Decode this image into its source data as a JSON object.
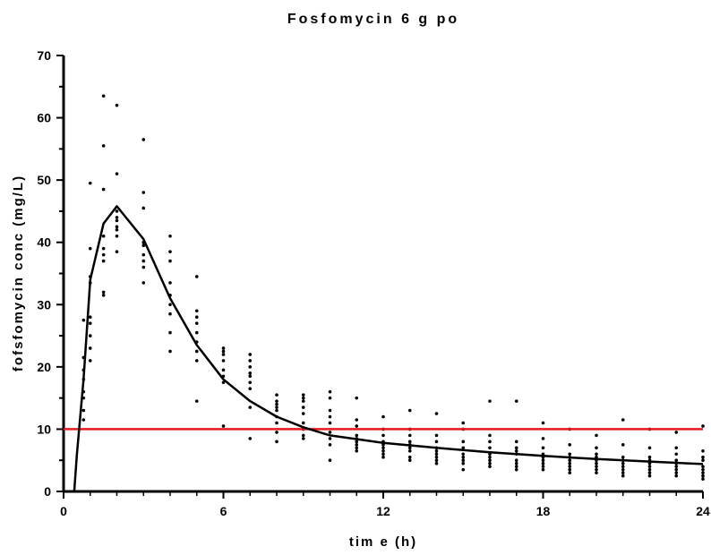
{
  "chart_data": {
    "type": "scatter",
    "title": "Fosfomycin 6 g po",
    "xlabel": "tim e (h)",
    "ylabel": "fofsfomycin conc (mg/L)",
    "xlim": [
      0,
      24
    ],
    "ylim": [
      0,
      70
    ],
    "x_ticks": [
      "0",
      "6",
      "12",
      "18",
      "24"
    ],
    "y_ticks": [
      "0",
      "10",
      "20",
      "30",
      "40",
      "50",
      "60",
      "70"
    ],
    "grid": false,
    "threshold": {
      "y": 10,
      "color": "#e41a1c"
    },
    "model_curve": {
      "color": "#000000",
      "x": [
        0.4,
        0.5,
        0.75,
        1.0,
        1.5,
        2.0,
        3.0,
        4.0,
        5.0,
        6.0,
        7.0,
        8.0,
        9.0,
        10.0,
        12.0,
        14.0,
        16.0,
        18.0,
        20.0,
        22.0,
        24.0
      ],
      "y": [
        0,
        6,
        18,
        34,
        43,
        45.8,
        40.5,
        31,
        23.5,
        18,
        14.5,
        12,
        10.3,
        9,
        7.8,
        7,
        6.3,
        5.7,
        5.2,
        4.8,
        4.4
      ]
    },
    "observations": {
      "color": "#000000",
      "points": [
        [
          0.75,
          11.5
        ],
        [
          0.75,
          13
        ],
        [
          0.75,
          15
        ],
        [
          0.75,
          16
        ],
        [
          0.75,
          18
        ],
        [
          0.75,
          19.5
        ],
        [
          0.75,
          21.5
        ],
        [
          0.75,
          27.5
        ],
        [
          1,
          21
        ],
        [
          1,
          23
        ],
        [
          1,
          25
        ],
        [
          1,
          27
        ],
        [
          1,
          28
        ],
        [
          1,
          33.5
        ],
        [
          1,
          34.5
        ],
        [
          1,
          39
        ],
        [
          1,
          49.5
        ],
        [
          1.5,
          31.5
        ],
        [
          1.5,
          32
        ],
        [
          1.5,
          37
        ],
        [
          1.5,
          38
        ],
        [
          1.5,
          39
        ],
        [
          1.5,
          41
        ],
        [
          1.5,
          48.5
        ],
        [
          1.5,
          55.5
        ],
        [
          1.5,
          63.5
        ],
        [
          2,
          38.5
        ],
        [
          2,
          41
        ],
        [
          2,
          42
        ],
        [
          2,
          42.5
        ],
        [
          2,
          43.5
        ],
        [
          2,
          44
        ],
        [
          2,
          45
        ],
        [
          2,
          51
        ],
        [
          2,
          62
        ],
        [
          3,
          33.5
        ],
        [
          3,
          36
        ],
        [
          3,
          37
        ],
        [
          3,
          38
        ],
        [
          3,
          39.5
        ],
        [
          3,
          40
        ],
        [
          3,
          45.5
        ],
        [
          3,
          48
        ],
        [
          3,
          56.5
        ],
        [
          4,
          22.5
        ],
        [
          4,
          25.5
        ],
        [
          4,
          28.5
        ],
        [
          4,
          30
        ],
        [
          4,
          31.5
        ],
        [
          4,
          33.5
        ],
        [
          4,
          37
        ],
        [
          4,
          38.5
        ],
        [
          4,
          41
        ],
        [
          5,
          14.5
        ],
        [
          5,
          21
        ],
        [
          5,
          22.5
        ],
        [
          5,
          24
        ],
        [
          5,
          25.5
        ],
        [
          5,
          27
        ],
        [
          5,
          28
        ],
        [
          5,
          29
        ],
        [
          5,
          34.5
        ],
        [
          6,
          10.5
        ],
        [
          6,
          17.5
        ],
        [
          6,
          18.5
        ],
        [
          6,
          19.5
        ],
        [
          6,
          21
        ],
        [
          6,
          22
        ],
        [
          6,
          22.5
        ],
        [
          6,
          23
        ],
        [
          7,
          8.5
        ],
        [
          7,
          13.5
        ],
        [
          7,
          16.5
        ],
        [
          7,
          17.5
        ],
        [
          7,
          18.5
        ],
        [
          7,
          19
        ],
        [
          7,
          20
        ],
        [
          7,
          21
        ],
        [
          7,
          22
        ],
        [
          8,
          8
        ],
        [
          8,
          9.5
        ],
        [
          8,
          11
        ],
        [
          8,
          12
        ],
        [
          8,
          13
        ],
        [
          8,
          13.5
        ],
        [
          8,
          14
        ],
        [
          8,
          14.5
        ],
        [
          8,
          15.5
        ],
        [
          9,
          8.5
        ],
        [
          9,
          9
        ],
        [
          9,
          10
        ],
        [
          9,
          11
        ],
        [
          9,
          12.5
        ],
        [
          9,
          13.5
        ],
        [
          9,
          14.5
        ],
        [
          9,
          15
        ],
        [
          9,
          15.5
        ],
        [
          10,
          5
        ],
        [
          10,
          7.5
        ],
        [
          10,
          8.5
        ],
        [
          10,
          9.5
        ],
        [
          10,
          11
        ],
        [
          10,
          12
        ],
        [
          10,
          13
        ],
        [
          10,
          15
        ],
        [
          10,
          16
        ],
        [
          11,
          6.5
        ],
        [
          11,
          7
        ],
        [
          11,
          7.5
        ],
        [
          11,
          8
        ],
        [
          11,
          8.5
        ],
        [
          11,
          9
        ],
        [
          11,
          10.5
        ],
        [
          11,
          11.5
        ],
        [
          11,
          15
        ],
        [
          12,
          5.5
        ],
        [
          12,
          6
        ],
        [
          12,
          6.5
        ],
        [
          12,
          7
        ],
        [
          12,
          7.5
        ],
        [
          12,
          8
        ],
        [
          12,
          9
        ],
        [
          12,
          10
        ],
        [
          12,
          12
        ],
        [
          13,
          5
        ],
        [
          13,
          5.5
        ],
        [
          13,
          6.5
        ],
        [
          13,
          7
        ],
        [
          13,
          7.5
        ],
        [
          13,
          8
        ],
        [
          13,
          9
        ],
        [
          13,
          10
        ],
        [
          13,
          13
        ],
        [
          14,
          4.5
        ],
        [
          14,
          5
        ],
        [
          14,
          5.5
        ],
        [
          14,
          6
        ],
        [
          14,
          6.5
        ],
        [
          14,
          7
        ],
        [
          14,
          8
        ],
        [
          14,
          9
        ],
        [
          14,
          12.5
        ],
        [
          15,
          3.5
        ],
        [
          15,
          4.5
        ],
        [
          15,
          5
        ],
        [
          15,
          5.5
        ],
        [
          15,
          6
        ],
        [
          15,
          7
        ],
        [
          15,
          8
        ],
        [
          15,
          10
        ],
        [
          15,
          11
        ],
        [
          16,
          4
        ],
        [
          16,
          4.5
        ],
        [
          16,
          5
        ],
        [
          16,
          5.5
        ],
        [
          16,
          6
        ],
        [
          16,
          7
        ],
        [
          16,
          8
        ],
        [
          16,
          9
        ],
        [
          16,
          14.5
        ],
        [
          17,
          3.5
        ],
        [
          17,
          4
        ],
        [
          17,
          4.5
        ],
        [
          17,
          5
        ],
        [
          17,
          6
        ],
        [
          17,
          6.5
        ],
        [
          17,
          7
        ],
        [
          17,
          8
        ],
        [
          17,
          14.5
        ],
        [
          18,
          3.5
        ],
        [
          18,
          4
        ],
        [
          18,
          4.5
        ],
        [
          18,
          5
        ],
        [
          18,
          5.5
        ],
        [
          18,
          6
        ],
        [
          18,
          7
        ],
        [
          18,
          8.5
        ],
        [
          18,
          11
        ],
        [
          19,
          3
        ],
        [
          19,
          3.5
        ],
        [
          19,
          4
        ],
        [
          19,
          4.5
        ],
        [
          19,
          5
        ],
        [
          19,
          5.5
        ],
        [
          19,
          6
        ],
        [
          19,
          7.5
        ],
        [
          19,
          10
        ],
        [
          20,
          3
        ],
        [
          20,
          3.5
        ],
        [
          20,
          4
        ],
        [
          20,
          4.5
        ],
        [
          20,
          5
        ],
        [
          20,
          5.5
        ],
        [
          20,
          6
        ],
        [
          20,
          7
        ],
        [
          20,
          9
        ],
        [
          21,
          2.5
        ],
        [
          21,
          3
        ],
        [
          21,
          3.5
        ],
        [
          21,
          4
        ],
        [
          21,
          4.5
        ],
        [
          21,
          5
        ],
        [
          21,
          5.5
        ],
        [
          21,
          7.5
        ],
        [
          21,
          11.5
        ],
        [
          22,
          2.5
        ],
        [
          22,
          3
        ],
        [
          22,
          3.5
        ],
        [
          22,
          4
        ],
        [
          22,
          4.5
        ],
        [
          22,
          5
        ],
        [
          22,
          5.5
        ],
        [
          22,
          7
        ],
        [
          22,
          10
        ],
        [
          23,
          2.5
        ],
        [
          23,
          3
        ],
        [
          23,
          3.5
        ],
        [
          23,
          4
        ],
        [
          23,
          4.5
        ],
        [
          23,
          5
        ],
        [
          23,
          6
        ],
        [
          23,
          7
        ],
        [
          23,
          9.5
        ],
        [
          24,
          2
        ],
        [
          24,
          2.5
        ],
        [
          24,
          3
        ],
        [
          24,
          3.5
        ],
        [
          24,
          4
        ],
        [
          24,
          5
        ],
        [
          24,
          5.5
        ],
        [
          24,
          6.5
        ],
        [
          24,
          10.5
        ]
      ]
    }
  }
}
